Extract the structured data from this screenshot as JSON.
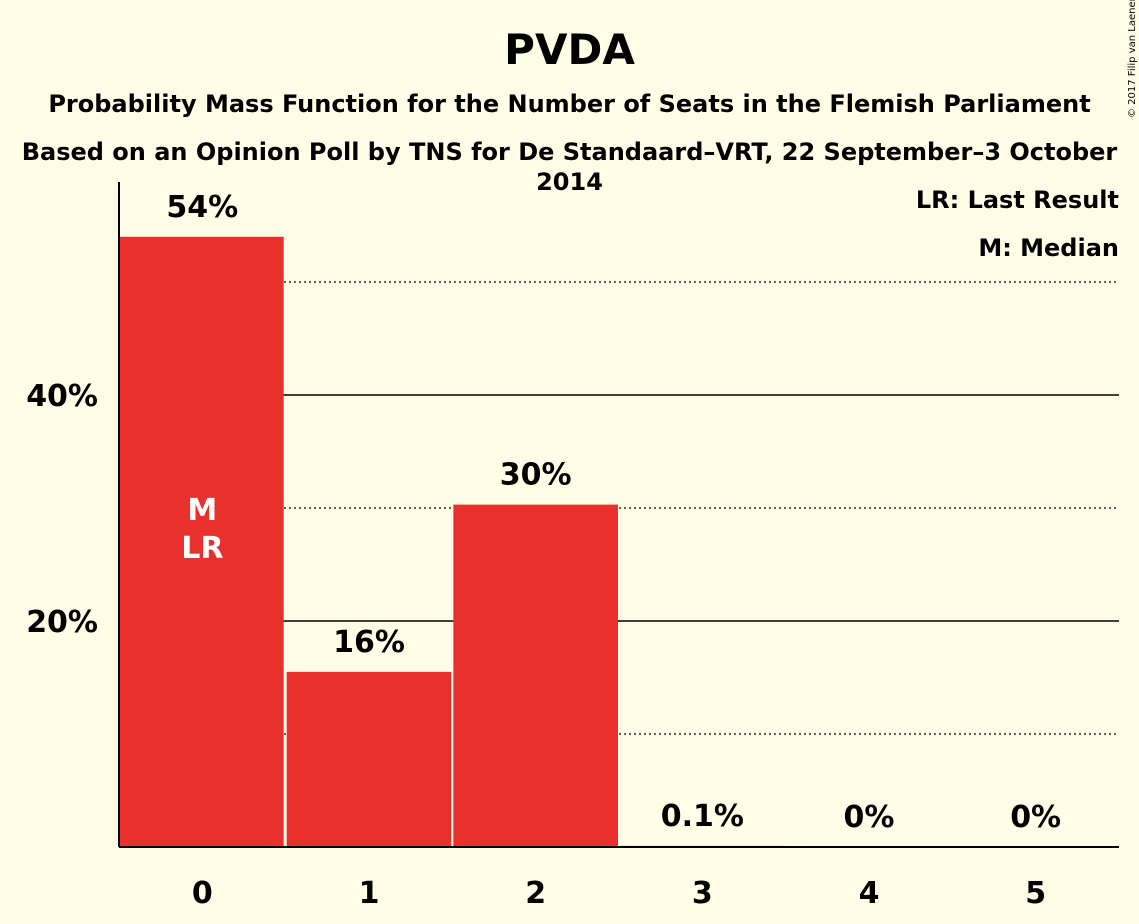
{
  "chart_data": {
    "type": "bar",
    "title": "PVDA",
    "subtitle": "Probability Mass Function for the Number of Seats in the Flemish Parliament",
    "subtitle2": "Based on an Opinion Poll by TNS for De Standaard–VRT, 22 September–3 October 2014",
    "categories": [
      "0",
      "1",
      "2",
      "3",
      "4",
      "5"
    ],
    "values": [
      54,
      15.5,
      30.3,
      0.1,
      0,
      0
    ],
    "data_labels": [
      "54%",
      "16%",
      "30%",
      "0.1%",
      "0%",
      "0%"
    ],
    "ylim": [
      0,
      59
    ],
    "yticks_major": [
      20,
      40
    ],
    "ytick_labels": [
      "20%",
      "40%"
    ],
    "yticks_minor": [
      10,
      30,
      50
    ],
    "bar_color": "#E8312C",
    "median_index": 0,
    "last_result_index": 0,
    "bar_markers": [
      "M",
      "LR"
    ],
    "legend": [
      "LR: Last Result",
      "M: Median"
    ],
    "legend_position": "top-right",
    "copyright": "© 2017 Filip van Laenen"
  }
}
